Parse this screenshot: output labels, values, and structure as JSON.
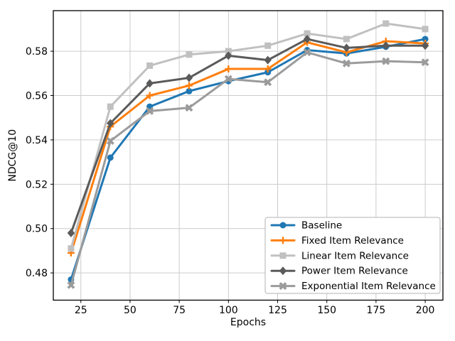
{
  "figure": {
    "background": "#ffffff"
  },
  "colors": {
    "grid": "#cccccc",
    "spine": "#000000",
    "tick": "#000000",
    "legend_border": "#b3b3b3",
    "legend_bg": "#ffffff"
  },
  "chart_data": {
    "type": "line",
    "title": "",
    "xlabel": "Epochs",
    "ylabel": "NDCG@10",
    "x": [
      20,
      40,
      60,
      80,
      100,
      120,
      140,
      160,
      180,
      200
    ],
    "xlim": [
      11,
      209
    ],
    "ylim": [
      0.4677,
      0.5983
    ],
    "xticks": [
      25,
      50,
      75,
      100,
      125,
      150,
      175,
      200
    ],
    "yticks": [
      0.48,
      0.5,
      0.52,
      0.54,
      0.56,
      0.58
    ],
    "grid": true,
    "legend_position": "lower right",
    "series": [
      {
        "name": "Baseline",
        "color": "#1f77b4",
        "marker": "circle",
        "values": [
          0.477,
          0.532,
          0.555,
          0.562,
          0.5665,
          0.5705,
          0.5805,
          0.579,
          0.582,
          0.5855
        ]
      },
      {
        "name": "Fixed Item Relevance",
        "color": "#ff7f0e",
        "marker": "plus",
        "values": [
          0.489,
          0.546,
          0.56,
          0.5645,
          0.572,
          0.572,
          0.584,
          0.5795,
          0.5845,
          0.5835
        ]
      },
      {
        "name": "Linear Item Relevance",
        "color": "#c0c0c0",
        "marker": "square",
        "values": [
          0.491,
          0.555,
          0.5735,
          0.5785,
          0.58,
          0.5825,
          0.588,
          0.5855,
          0.5925,
          0.59
        ]
      },
      {
        "name": "Power Item Relevance",
        "color": "#5a5a5a",
        "marker": "diamond",
        "values": [
          0.498,
          0.5475,
          0.5655,
          0.568,
          0.578,
          0.576,
          0.5855,
          0.5815,
          0.5825,
          0.5825
        ]
      },
      {
        "name": "Exponential Item Relevance",
        "color": "#9b9b9b",
        "marker": "x",
        "values": [
          0.4745,
          0.5395,
          0.553,
          0.5545,
          0.5675,
          0.566,
          0.5795,
          0.5745,
          0.5755,
          0.575
        ]
      }
    ]
  }
}
